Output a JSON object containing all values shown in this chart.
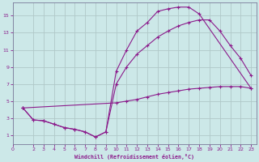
{
  "bg_color": "#cce8e8",
  "line_color": "#8b1a8b",
  "grid_color": "#b0c8c8",
  "xlabel": "Windchill (Refroidissement éolien,°C)",
  "ylabel_ticks": [
    1,
    3,
    5,
    7,
    9,
    11,
    13,
    15
  ],
  "xlabel_ticks": [
    0,
    2,
    3,
    4,
    5,
    6,
    7,
    8,
    9,
    10,
    11,
    12,
    13,
    14,
    15,
    16,
    17,
    18,
    19,
    20,
    21,
    22,
    23
  ],
  "xlim": [
    0,
    23.5
  ],
  "ylim": [
    0.0,
    16.5
  ],
  "line_flat_x": [
    1,
    10,
    11,
    12,
    13,
    14,
    15,
    16,
    17,
    18,
    19,
    20,
    21,
    22,
    23
  ],
  "line_flat_y": [
    4.2,
    4.8,
    5.0,
    5.2,
    5.5,
    5.8,
    6.0,
    6.2,
    6.4,
    6.5,
    6.6,
    6.7,
    6.7,
    6.7,
    6.5
  ],
  "line_upper_x": [
    1,
    2,
    3,
    4,
    5,
    6,
    7,
    8,
    9,
    10,
    11,
    12,
    13,
    14,
    15,
    16,
    17,
    18,
    23
  ],
  "line_upper_y": [
    4.2,
    2.8,
    2.7,
    2.3,
    1.9,
    1.7,
    1.4,
    0.8,
    1.4,
    8.5,
    11.0,
    13.2,
    14.2,
    15.5,
    15.8,
    16.0,
    16.0,
    15.2,
    6.5
  ],
  "line_mid_x": [
    1,
    2,
    3,
    4,
    5,
    6,
    7,
    8,
    9,
    10,
    11,
    12,
    13,
    14,
    15,
    16,
    17,
    18,
    19,
    20,
    21,
    22,
    23
  ],
  "line_mid_y": [
    4.2,
    2.8,
    2.7,
    2.3,
    1.9,
    1.7,
    1.4,
    0.8,
    1.4,
    7.0,
    9.0,
    10.5,
    11.5,
    12.5,
    13.2,
    13.8,
    14.2,
    14.5,
    14.5,
    13.2,
    11.5,
    10.0,
    8.0
  ]
}
